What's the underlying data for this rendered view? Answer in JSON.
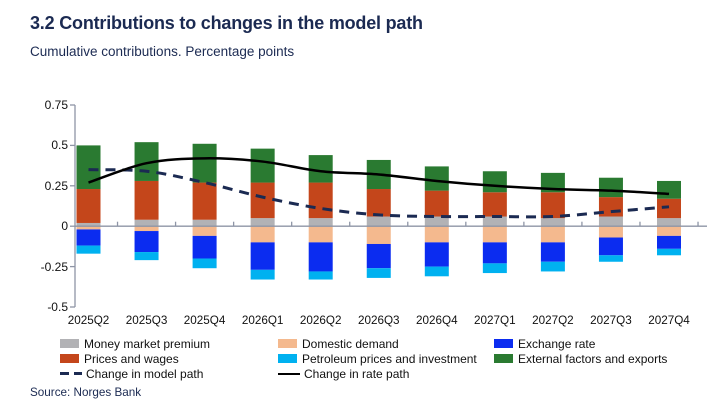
{
  "header": {
    "title": "3.2 Contributions to changes in the model path",
    "subtitle": "Cumulative contributions. Percentage points"
  },
  "source": {
    "text": "Source: Norges Bank"
  },
  "colors": {
    "navy": "#1b2a52",
    "axis": "#8e95a6",
    "label_text": "#111111",
    "money_market_premium": "#b2b2b5",
    "prices_and_wages": "#c4461b",
    "external_factors": "#2a7a31",
    "domestic_demand": "#f4b98e",
    "exchange_rate": "#0b2cf0",
    "petroleum": "#00b1f0",
    "rate_path_line": "#000000"
  },
  "chart_data": {
    "type": "bar",
    "stacked": true,
    "title": "3.2 Contributions to changes in the model path",
    "subtitle": "Cumulative contributions. Percentage points",
    "xlabel": "",
    "ylabel": "Percentage points",
    "ylim": [
      -0.5,
      0.75
    ],
    "y_ticks": [
      "0.75",
      "0.5",
      "0.25",
      "0",
      "-0.25",
      "-0.5"
    ],
    "grid": "zero-line-only",
    "legend_position": "bottom",
    "categories": [
      "2025Q2",
      "2025Q3",
      "2025Q4",
      "2026Q1",
      "2026Q2",
      "2026Q3",
      "2026Q4",
      "2027Q1",
      "2027Q2",
      "2027Q3",
      "2027Q4"
    ],
    "series": [
      {
        "name": "Money market premium",
        "color": "#b2b2b5",
        "values": [
          0.02,
          0.04,
          0.04,
          0.05,
          0.05,
          0.06,
          0.06,
          0.06,
          0.05,
          0.06,
          0.05
        ]
      },
      {
        "name": "Prices and wages",
        "color": "#c4461b",
        "values": [
          0.21,
          0.24,
          0.23,
          0.22,
          0.22,
          0.17,
          0.16,
          0.15,
          0.16,
          0.12,
          0.12
        ]
      },
      {
        "name": "External factors and exports",
        "color": "#2a7a31",
        "values": [
          0.27,
          0.24,
          0.24,
          0.21,
          0.17,
          0.18,
          0.15,
          0.13,
          0.12,
          0.12,
          0.11
        ]
      },
      {
        "name": "Domestic demand",
        "color": "#f4b98e",
        "values": [
          -0.02,
          -0.03,
          -0.06,
          -0.1,
          -0.1,
          -0.11,
          -0.1,
          -0.1,
          -0.1,
          -0.07,
          -0.06
        ]
      },
      {
        "name": "Exchange rate",
        "color": "#0b2cf0",
        "values": [
          -0.1,
          -0.13,
          -0.14,
          -0.17,
          -0.18,
          -0.15,
          -0.15,
          -0.13,
          -0.12,
          -0.11,
          -0.08
        ]
      },
      {
        "name": "Petroleum prices and investment",
        "color": "#00b1f0",
        "values": [
          -0.05,
          -0.05,
          -0.06,
          -0.06,
          -0.05,
          -0.06,
          -0.06,
          -0.06,
          -0.06,
          -0.04,
          -0.04
        ]
      }
    ],
    "lines": [
      {
        "name": "Change in model path",
        "style": "dashed",
        "color": "#1b2a52",
        "values": [
          0.35,
          0.34,
          0.27,
          0.18,
          0.11,
          0.07,
          0.06,
          0.06,
          0.06,
          0.09,
          0.12
        ]
      },
      {
        "name": "Change in rate path",
        "style": "solid",
        "color": "#000000",
        "values": [
          0.27,
          0.39,
          0.42,
          0.4,
          0.34,
          0.32,
          0.28,
          0.25,
          0.23,
          0.22,
          0.2
        ]
      }
    ]
  },
  "legend": {
    "columns": [
      [
        {
          "label": "Money market premium",
          "swatch": "rect",
          "color": "#b2b2b5"
        },
        {
          "label": "Prices and wages",
          "swatch": "rect",
          "color": "#c4461b"
        },
        {
          "label": "Change in model path",
          "swatch": "dashed-line",
          "color": "#1b2a52"
        }
      ],
      [
        {
          "label": "Domestic demand",
          "swatch": "rect",
          "color": "#f4b98e"
        },
        {
          "label": "Petroleum prices and investment",
          "swatch": "rect",
          "color": "#00b1f0"
        },
        {
          "label": "Change in rate path",
          "swatch": "solid-line",
          "color": "#000000"
        }
      ],
      [
        {
          "label": "Exchange rate",
          "swatch": "rect",
          "color": "#0b2cf0"
        },
        {
          "label": "External factors and exports",
          "swatch": "rect",
          "color": "#2a7a31"
        }
      ]
    ]
  }
}
